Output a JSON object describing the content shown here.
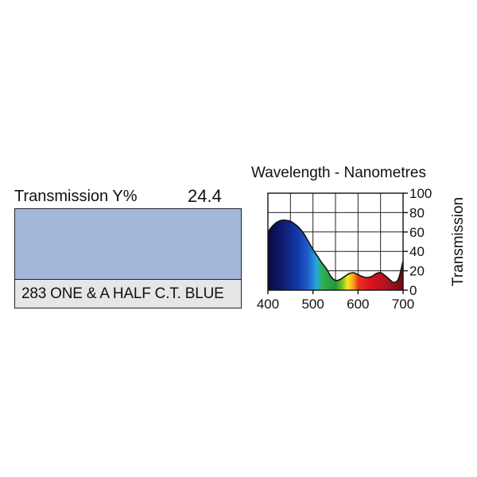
{
  "filter": {
    "transmission_label": "Transmission Y%",
    "transmission_value": "24.4",
    "name": "283 ONE & A HALF C.T. BLUE",
    "swatch_color": "#a3b8d9"
  },
  "chart_data": {
    "type": "area",
    "title": "Wavelength - Nanometres",
    "ylabel": "Transmission",
    "xlim": [
      400,
      700
    ],
    "ylim": [
      0,
      100
    ],
    "x_ticks": [
      "400",
      "500",
      "600",
      "700"
    ],
    "y_ticks": [
      "0",
      "20",
      "40",
      "60",
      "80",
      "100"
    ],
    "grid": true,
    "fill": "visible-spectrum",
    "x": [
      400,
      410,
      420,
      430,
      440,
      450,
      460,
      470,
      480,
      490,
      500,
      510,
      520,
      530,
      540,
      550,
      560,
      570,
      580,
      590,
      600,
      610,
      620,
      630,
      640,
      650,
      660,
      670,
      680,
      690,
      700
    ],
    "y": [
      60,
      66,
      70,
      72,
      72,
      71,
      68,
      64,
      58,
      50,
      42,
      35,
      28,
      22,
      14,
      10,
      11,
      14,
      17,
      18,
      16,
      14,
      13,
      14,
      17,
      18,
      15,
      11,
      8,
      12,
      30
    ]
  }
}
